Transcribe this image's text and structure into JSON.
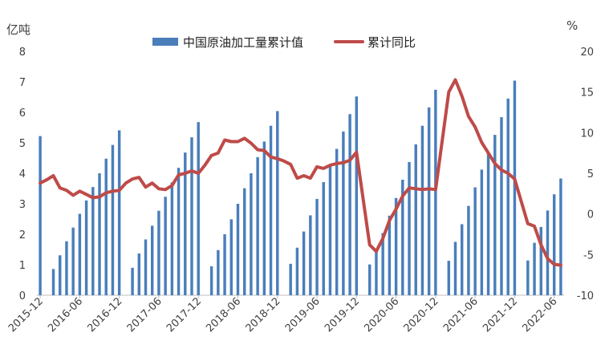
{
  "chart_data": {
    "type": "bar+line",
    "title": "",
    "left_axis_unit": "亿吨",
    "right_axis_unit": "%",
    "left_ylim": [
      0,
      8
    ],
    "right_ylim": [
      -10,
      20
    ],
    "left_ticks": [
      "0",
      "1",
      "2",
      "3",
      "4",
      "5",
      "6",
      "7",
      "8"
    ],
    "right_ticks": [
      "-10",
      "-5",
      "0",
      "5",
      "10",
      "15",
      "20"
    ],
    "x_tick_labels": [
      "2015-12",
      "2016-06",
      "2016-12",
      "2017-06",
      "2017-12",
      "2018-06",
      "2018-12",
      "2019-06",
      "2019-12",
      "2020-06",
      "2020-12",
      "2021-06",
      "2021-12",
      "2022-06"
    ],
    "x_tick_every": 6,
    "grid": false,
    "legend_position": "top",
    "x": [
      "2015-12",
      "2016-01",
      "2016-02",
      "2016-03",
      "2016-04",
      "2016-05",
      "2016-06",
      "2016-07",
      "2016-08",
      "2016-09",
      "2016-10",
      "2016-11",
      "2016-12",
      "2017-01",
      "2017-02",
      "2017-03",
      "2017-04",
      "2017-05",
      "2017-06",
      "2017-07",
      "2017-08",
      "2017-09",
      "2017-10",
      "2017-11",
      "2017-12",
      "2018-01",
      "2018-02",
      "2018-03",
      "2018-04",
      "2018-05",
      "2018-06",
      "2018-07",
      "2018-08",
      "2018-09",
      "2018-10",
      "2018-11",
      "2018-12",
      "2019-01",
      "2019-02",
      "2019-03",
      "2019-04",
      "2019-05",
      "2019-06",
      "2019-07",
      "2019-08",
      "2019-09",
      "2019-10",
      "2019-11",
      "2019-12",
      "2020-01",
      "2020-02",
      "2020-03",
      "2020-04",
      "2020-05",
      "2020-06",
      "2020-07",
      "2020-08",
      "2020-09",
      "2020-10",
      "2020-11",
      "2020-12",
      "2021-01",
      "2021-02",
      "2021-03",
      "2021-04",
      "2021-05",
      "2021-06",
      "2021-07",
      "2021-08",
      "2021-09",
      "2021-10",
      "2021-11",
      "2021-12",
      "2022-01",
      "2022-02",
      "2022-03",
      "2022-04",
      "2022-05",
      "2022-06",
      "2022-07"
    ],
    "series": [
      {
        "name": "中国原油加工量累计值",
        "type": "bar",
        "axis": "left",
        "color": "#4a7ebb",
        "values": [
          5.22,
          null,
          0.86,
          1.31,
          1.77,
          2.22,
          2.67,
          3.11,
          3.55,
          4.0,
          4.48,
          4.93,
          5.41,
          null,
          0.9,
          1.37,
          1.83,
          2.28,
          2.77,
          3.23,
          3.7,
          4.18,
          4.68,
          5.18,
          5.68,
          null,
          0.95,
          1.48,
          2.0,
          2.49,
          3.0,
          3.51,
          4.0,
          4.53,
          5.04,
          5.56,
          6.04,
          null,
          1.03,
          1.56,
          2.09,
          2.62,
          3.16,
          3.71,
          4.25,
          4.8,
          5.37,
          5.94,
          6.52,
          null,
          1.01,
          1.51,
          2.04,
          2.61,
          3.19,
          3.79,
          4.37,
          4.95,
          5.56,
          6.16,
          6.74,
          null,
          1.13,
          1.75,
          2.33,
          2.93,
          3.54,
          4.12,
          4.7,
          5.26,
          5.84,
          6.45,
          7.04,
          null,
          1.14,
          1.72,
          2.24,
          2.78,
          3.31,
          3.83
        ]
      },
      {
        "name": "累计同比",
        "type": "line",
        "axis": "right",
        "color": "#be4b48",
        "values": [
          3.8,
          4.2,
          4.7,
          3.2,
          2.9,
          2.3,
          2.8,
          2.4,
          2.0,
          2.1,
          2.6,
          2.8,
          2.9,
          3.8,
          4.3,
          4.5,
          3.3,
          3.8,
          3.1,
          3.0,
          3.5,
          4.8,
          5.0,
          5.3,
          5.0,
          6.0,
          7.2,
          7.5,
          9.1,
          8.9,
          8.9,
          9.3,
          8.7,
          7.9,
          7.8,
          7.0,
          6.8,
          6.5,
          6.1,
          4.4,
          4.7,
          4.4,
          5.8,
          5.6,
          6.0,
          6.2,
          6.3,
          6.6,
          7.6,
          null,
          -3.8,
          -4.6,
          -3.0,
          -0.8,
          0.6,
          2.2,
          3.2,
          3.1,
          3.0,
          3.1,
          3.0,
          null,
          15.0,
          16.5,
          14.5,
          12.0,
          10.7,
          8.8,
          7.5,
          6.2,
          5.4,
          5.0,
          4.3,
          null,
          -1.2,
          -1.5,
          -3.8,
          -5.5,
          -6.2,
          -6.3
        ]
      }
    ]
  }
}
